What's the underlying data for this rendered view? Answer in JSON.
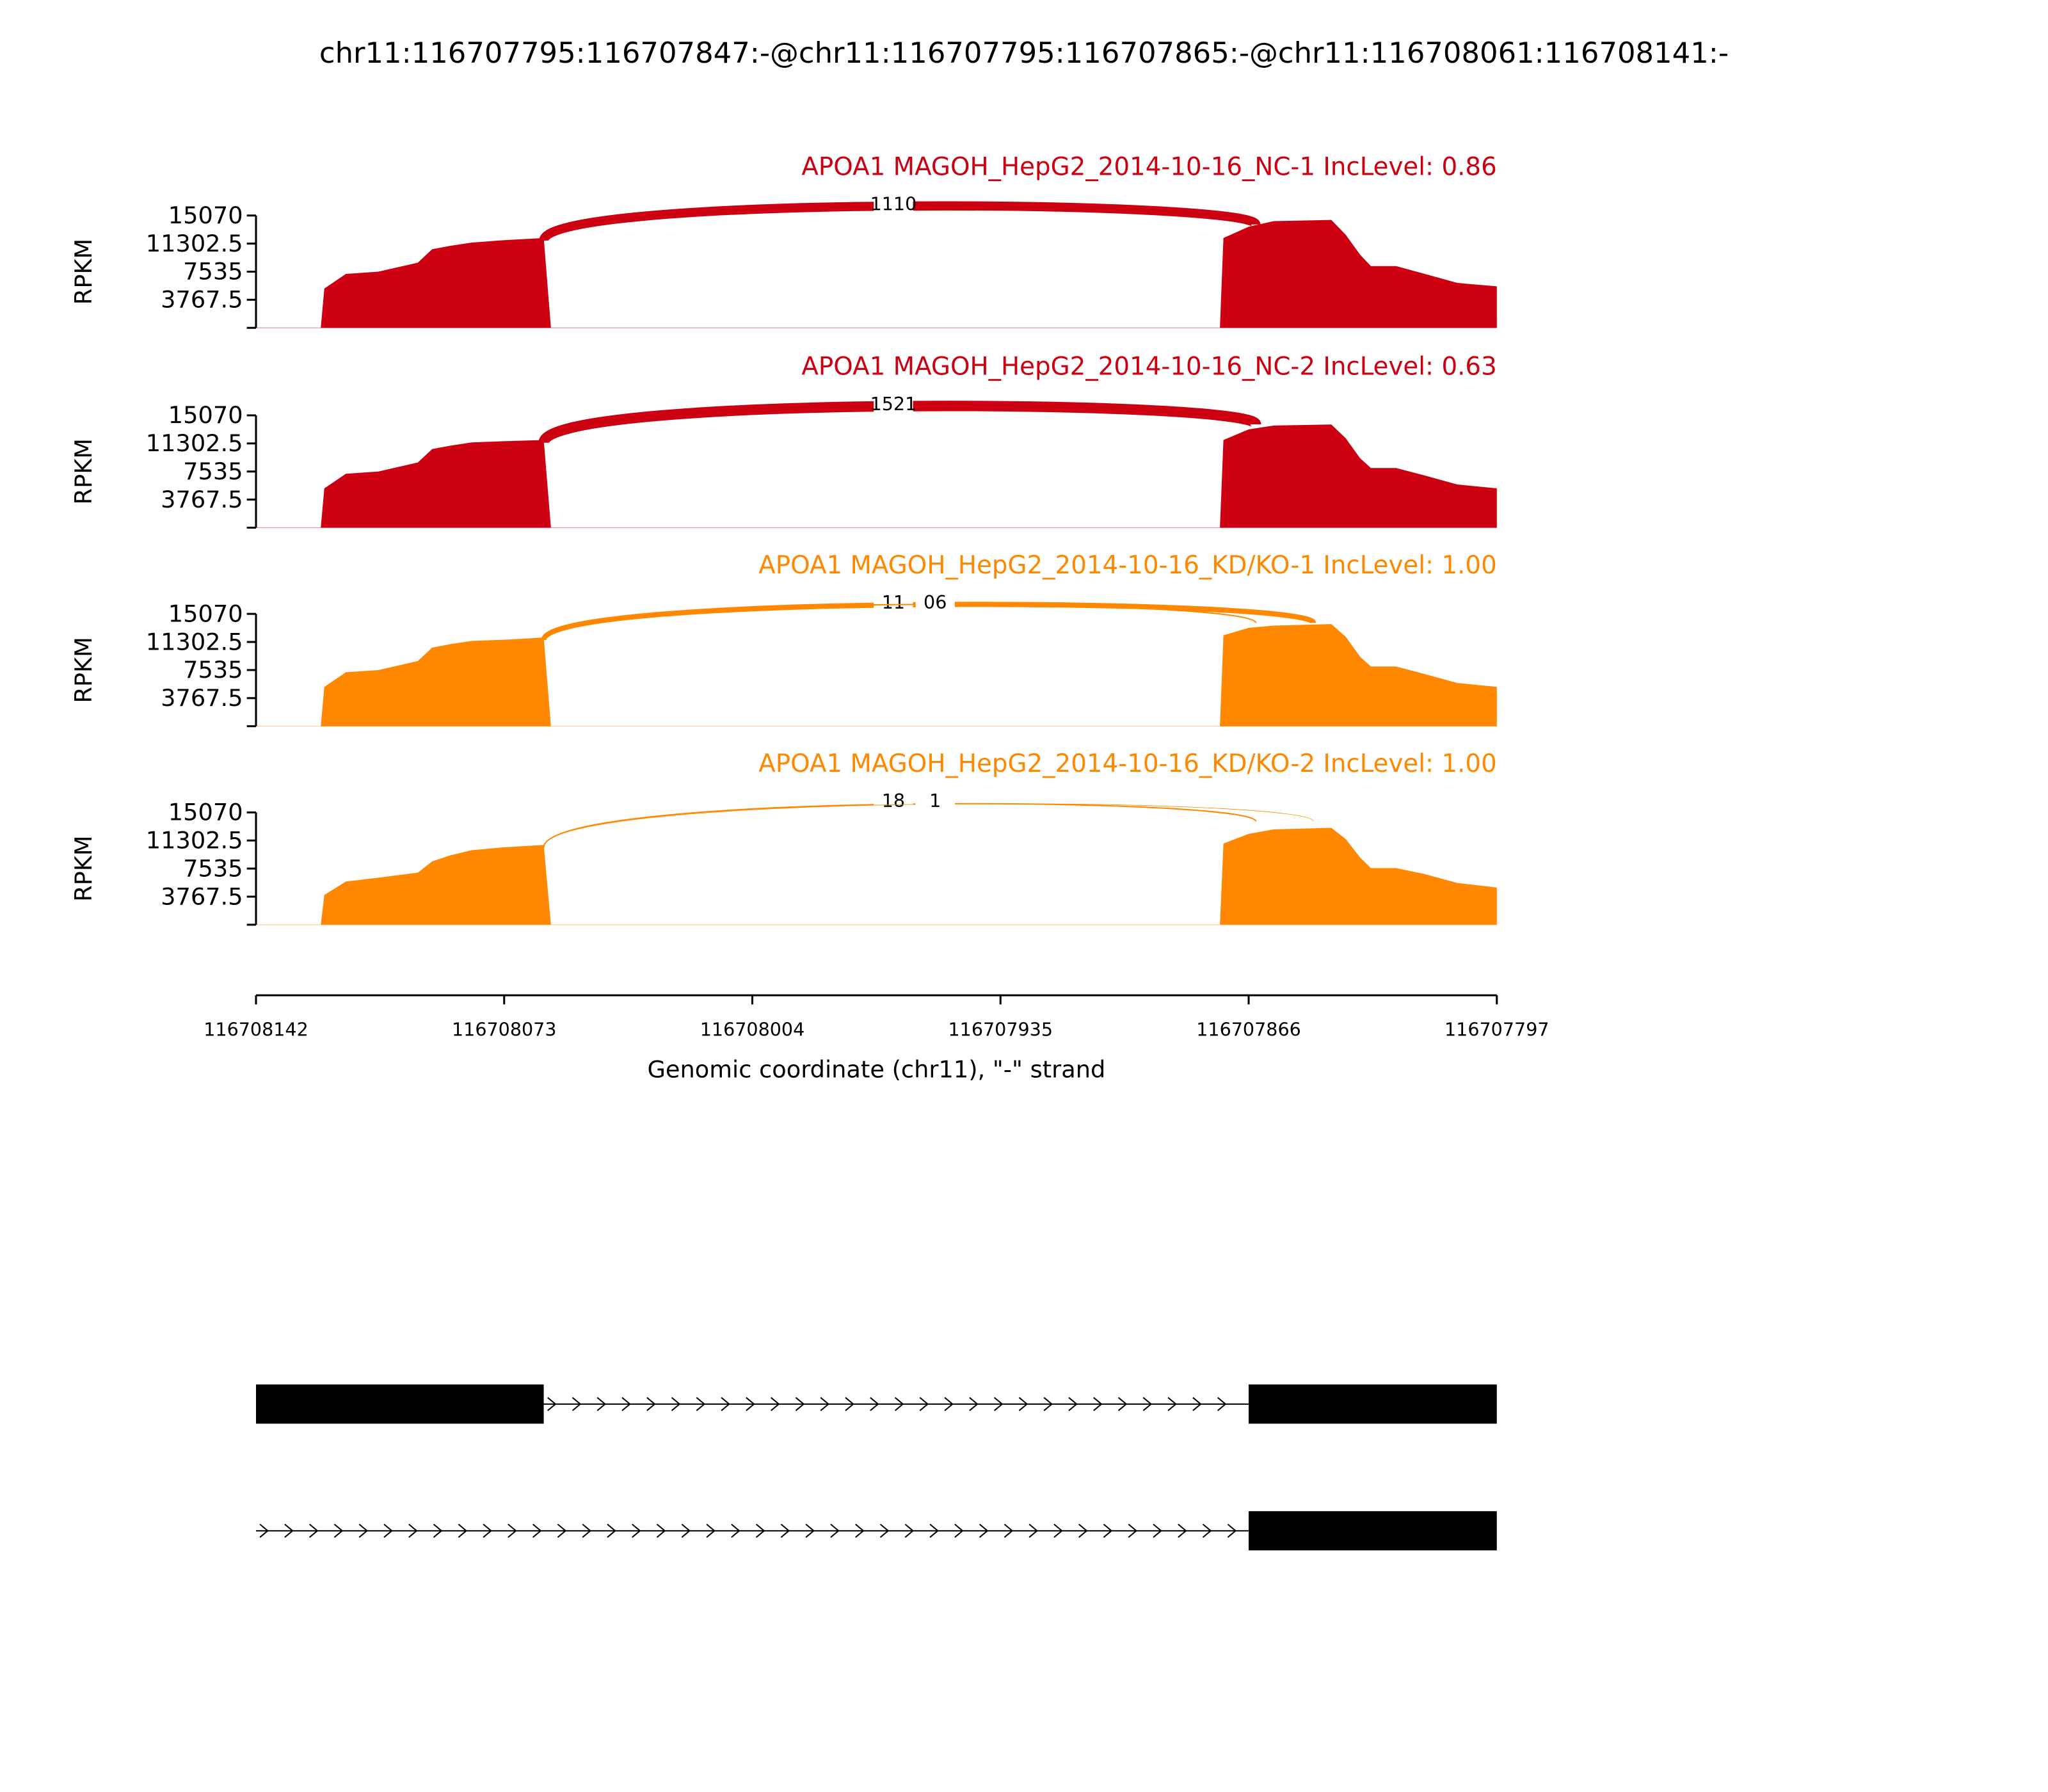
{
  "chart_data": {
    "type": "area",
    "subtype": "sashimi",
    "title": "chr11:116707795:116707847:-@chr11:116707795:116707865:-@chr11:116708061:116708141:-",
    "xlabel": "Genomic coordinate (chr11), \"-\" strand",
    "ylabel": "RPKM",
    "xlim": [
      116708142,
      116707797
    ],
    "xticks": [
      "116708142",
      "116708073",
      "116708004",
      "116707935",
      "116707866",
      "116707797"
    ],
    "xtick_values": [
      116708142,
      116708073,
      116708004,
      116707935,
      116707866,
      116707797
    ],
    "ylim": [
      0,
      15070
    ],
    "yticks": [
      "15070",
      "11302.5",
      "7535",
      "3767.5"
    ],
    "ytick_values": [
      15070,
      11302.5,
      7535,
      3767.5
    ],
    "colors": {
      "NC": "#cc0011",
      "KD": "#ff8800"
    },
    "tracks": [
      {
        "label": "APOA1 MAGOH_HepG2_2014-10-16_NC-1 IncLevel: 0.86",
        "group": "NC",
        "junctions": [
          {
            "from": 116708062,
            "to": 116707864,
            "count_label": "1110",
            "weight": 7
          }
        ],
        "coverage": [
          [
            116708142,
            0
          ],
          [
            116708124,
            0
          ],
          [
            116708123,
            5270
          ],
          [
            116708117,
            7230
          ],
          [
            116708108,
            7530
          ],
          [
            116708097,
            8740
          ],
          [
            116708093,
            10550
          ],
          [
            116708088,
            11000
          ],
          [
            116708082,
            11450
          ],
          [
            116708073,
            11750
          ],
          [
            116708062,
            12060
          ],
          [
            116708060,
            0
          ],
          [
            116707874,
            0
          ],
          [
            116707873,
            12060
          ],
          [
            116707866,
            13560
          ],
          [
            116707859,
            14320
          ],
          [
            116707843,
            14470
          ],
          [
            116707839,
            12500
          ],
          [
            116707835,
            9800
          ],
          [
            116707832,
            8290
          ],
          [
            116707825,
            8290
          ],
          [
            116707817,
            7230
          ],
          [
            116707808,
            6030
          ],
          [
            116707797,
            5580
          ]
        ]
      },
      {
        "label": "APOA1 MAGOH_HepG2_2014-10-16_NC-2 IncLevel: 0.63",
        "group": "NC",
        "junctions": [
          {
            "from": 116708062,
            "to": 116707864,
            "count_label": "1521",
            "weight": 8
          }
        ],
        "coverage": [
          [
            116708142,
            0
          ],
          [
            116708124,
            0
          ],
          [
            116708123,
            5270
          ],
          [
            116708117,
            7230
          ],
          [
            116708108,
            7530
          ],
          [
            116708097,
            8740
          ],
          [
            116708093,
            10550
          ],
          [
            116708088,
            11000
          ],
          [
            116708082,
            11450
          ],
          [
            116708073,
            11600
          ],
          [
            116708062,
            11750
          ],
          [
            116708060,
            0
          ],
          [
            116707874,
            0
          ],
          [
            116707873,
            11750
          ],
          [
            116707866,
            13200
          ],
          [
            116707859,
            13700
          ],
          [
            116707843,
            13850
          ],
          [
            116707839,
            12000
          ],
          [
            116707835,
            9300
          ],
          [
            116707832,
            8000
          ],
          [
            116707825,
            8000
          ],
          [
            116707817,
            7000
          ],
          [
            116707808,
            5800
          ],
          [
            116707797,
            5270
          ]
        ]
      },
      {
        "label": "APOA1 MAGOH_HepG2_2014-10-16_KD/KO-1 IncLevel: 1.00",
        "group": "KD",
        "junctions": [
          {
            "from": 116708062,
            "to": 116707848,
            "count_label": "11",
            "weight": 4
          },
          {
            "from": 116708062,
            "to": 116707864,
            "count_label": "06",
            "weight": 1
          }
        ],
        "coverage": [
          [
            116708142,
            0
          ],
          [
            116708124,
            0
          ],
          [
            116708123,
            5270
          ],
          [
            116708117,
            7230
          ],
          [
            116708108,
            7530
          ],
          [
            116708097,
            8740
          ],
          [
            116708093,
            10550
          ],
          [
            116708088,
            11000
          ],
          [
            116708082,
            11450
          ],
          [
            116708073,
            11600
          ],
          [
            116708062,
            11900
          ],
          [
            116708060,
            0
          ],
          [
            116707874,
            0
          ],
          [
            116707873,
            12200
          ],
          [
            116707866,
            13200
          ],
          [
            116707859,
            13500
          ],
          [
            116707843,
            13700
          ],
          [
            116707839,
            12000
          ],
          [
            116707835,
            9300
          ],
          [
            116707832,
            8000
          ],
          [
            116707825,
            8000
          ],
          [
            116707817,
            7000
          ],
          [
            116707808,
            5800
          ],
          [
            116707797,
            5270
          ]
        ]
      },
      {
        "label": "APOA1 MAGOH_HepG2_2014-10-16_KD/KO-2 IncLevel: 1.00",
        "group": "KD",
        "junctions": [
          {
            "from": 116708062,
            "to": 116707864,
            "count_label": "18",
            "weight": 1
          },
          {
            "from": 116708062,
            "to": 116707848,
            "count_label": "1",
            "weight": 0.4
          }
        ],
        "coverage": [
          [
            116708142,
            0
          ],
          [
            116708124,
            0
          ],
          [
            116708123,
            4000
          ],
          [
            116708117,
            5800
          ],
          [
            116708108,
            6300
          ],
          [
            116708097,
            7000
          ],
          [
            116708093,
            8500
          ],
          [
            116708088,
            9300
          ],
          [
            116708082,
            10000
          ],
          [
            116708073,
            10400
          ],
          [
            116708062,
            10700
          ],
          [
            116708060,
            0
          ],
          [
            116707874,
            0
          ],
          [
            116707873,
            10900
          ],
          [
            116707866,
            12200
          ],
          [
            116707859,
            12800
          ],
          [
            116707843,
            13000
          ],
          [
            116707839,
            11500
          ],
          [
            116707835,
            9000
          ],
          [
            116707832,
            7600
          ],
          [
            116707825,
            7600
          ],
          [
            116707817,
            6800
          ],
          [
            116707808,
            5600
          ],
          [
            116707797,
            5000
          ]
        ]
      }
    ],
    "transcripts": [
      {
        "exons": [
          [
            116708142,
            116708062
          ],
          [
            116707866,
            116707797
          ]
        ]
      },
      {
        "exons": [
          [
            116707866,
            116707797
          ]
        ],
        "intron_start": 116708142
      }
    ]
  }
}
